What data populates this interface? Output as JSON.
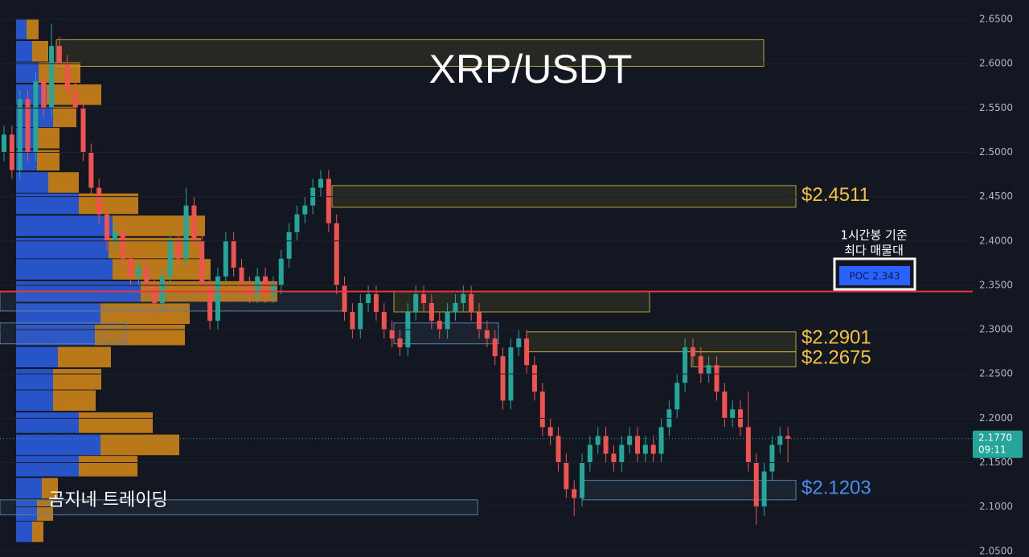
{
  "chart_data": {
    "type": "candlestick",
    "title": "XRP/USDT",
    "watermark": "곰지네 트레이딩",
    "ylim": [
      2.0435,
      2.6718
    ],
    "yticks": [
      {
        "value": 2.05,
        "label": "2.0500"
      },
      {
        "value": 2.1,
        "label": "2.1000"
      },
      {
        "value": 2.15,
        "label": "2.1500"
      },
      {
        "value": 2.2,
        "label": "2.2000"
      },
      {
        "value": 2.25,
        "label": "2.2500"
      },
      {
        "value": 2.3,
        "label": "2.3000"
      },
      {
        "value": 2.35,
        "label": "2.3500"
      },
      {
        "value": 2.4,
        "label": "2.4000"
      },
      {
        "value": 2.45,
        "label": "2.4500"
      },
      {
        "value": 2.5,
        "label": "2.5000"
      },
      {
        "value": 2.55,
        "label": "2.5500"
      },
      {
        "value": 2.6,
        "label": "2.6000"
      },
      {
        "value": 2.65,
        "label": "2.6500"
      }
    ],
    "up_color": "#26a69a",
    "down_color": "#ef5350",
    "open": [
      2.5,
      2.52,
      2.48,
      2.56,
      2.5,
      2.58,
      2.55,
      2.62,
      2.6,
      2.57,
      2.55,
      2.5,
      2.46,
      2.43,
      2.4,
      2.41,
      2.38,
      2.36,
      2.37,
      2.35,
      2.33,
      2.36,
      2.4,
      2.38,
      2.44,
      2.4,
      2.35,
      2.31,
      2.36,
      2.4,
      2.37,
      2.35,
      2.34,
      2.36,
      2.34,
      2.35,
      2.38,
      2.41,
      2.43,
      2.44,
      2.46,
      2.47,
      2.42,
      2.35,
      2.32,
      2.3,
      2.33,
      2.34,
      2.32,
      2.3,
      2.29,
      2.28,
      2.32,
      2.34,
      2.33,
      2.31,
      2.3,
      2.32,
      2.33,
      2.34,
      2.32,
      2.3,
      2.29,
      2.27,
      2.22,
      2.28,
      2.29,
      2.26,
      2.23,
      2.19,
      2.18,
      2.15,
      2.12,
      2.11,
      2.15,
      2.17,
      2.18,
      2.16,
      2.15,
      2.17,
      2.18,
      2.16,
      2.17,
      2.16,
      2.19,
      2.21,
      2.24,
      2.28,
      2.27,
      2.25,
      2.26,
      2.23,
      2.2,
      2.21,
      2.19,
      2.15,
      2.1,
      2.14,
      2.17,
      2.18
    ],
    "high": [
      2.53,
      2.53,
      2.57,
      2.57,
      2.59,
      2.59,
      2.645,
      2.63,
      2.61,
      2.58,
      2.56,
      2.51,
      2.47,
      2.44,
      2.42,
      2.42,
      2.39,
      2.38,
      2.38,
      2.36,
      2.37,
      2.41,
      2.41,
      2.46,
      2.45,
      2.41,
      2.36,
      2.37,
      2.41,
      2.41,
      2.38,
      2.36,
      2.37,
      2.37,
      2.36,
      2.39,
      2.42,
      2.44,
      2.45,
      2.47,
      2.48,
      2.48,
      2.43,
      2.36,
      2.33,
      2.34,
      2.35,
      2.35,
      2.33,
      2.31,
      2.3,
      2.33,
      2.35,
      2.35,
      2.34,
      2.32,
      2.33,
      2.34,
      2.35,
      2.35,
      2.33,
      2.31,
      2.3,
      2.28,
      2.29,
      2.3,
      2.3,
      2.27,
      2.24,
      2.2,
      2.19,
      2.16,
      2.13,
      2.16,
      2.18,
      2.19,
      2.19,
      2.17,
      2.18,
      2.19,
      2.19,
      2.18,
      2.18,
      2.2,
      2.22,
      2.25,
      2.29,
      2.29,
      2.28,
      2.27,
      2.27,
      2.24,
      2.22,
      2.22,
      2.23,
      2.16,
      2.15,
      2.18,
      2.19,
      2.19
    ],
    "low": [
      2.49,
      2.47,
      2.47,
      2.49,
      2.49,
      2.54,
      2.54,
      2.59,
      2.56,
      2.54,
      2.49,
      2.45,
      2.42,
      2.39,
      2.39,
      2.37,
      2.35,
      2.35,
      2.34,
      2.31,
      2.32,
      2.35,
      2.37,
      2.37,
      2.39,
      2.34,
      2.3,
      2.3,
      2.35,
      2.36,
      2.34,
      2.33,
      2.33,
      2.33,
      2.33,
      2.34,
      2.37,
      2.4,
      2.42,
      2.43,
      2.45,
      2.41,
      2.34,
      2.31,
      2.29,
      2.29,
      2.32,
      2.31,
      2.29,
      2.28,
      2.27,
      2.27,
      2.31,
      2.32,
      2.3,
      2.29,
      2.29,
      2.31,
      2.32,
      2.31,
      2.29,
      2.28,
      2.26,
      2.21,
      2.21,
      2.27,
      2.25,
      2.22,
      2.18,
      2.17,
      2.14,
      2.11,
      2.09,
      2.1,
      2.14,
      2.16,
      2.15,
      2.14,
      2.14,
      2.16,
      2.15,
      2.15,
      2.15,
      2.15,
      2.18,
      2.2,
      2.23,
      2.26,
      2.24,
      2.24,
      2.22,
      2.19,
      2.19,
      2.18,
      2.14,
      2.08,
      2.09,
      2.13,
      2.16,
      2.15
    ],
    "close": [
      2.52,
      2.48,
      2.56,
      2.5,
      2.58,
      2.55,
      2.62,
      2.6,
      2.57,
      2.55,
      2.5,
      2.46,
      2.43,
      2.4,
      2.41,
      2.38,
      2.36,
      2.37,
      2.35,
      2.33,
      2.36,
      2.4,
      2.38,
      2.44,
      2.4,
      2.35,
      2.31,
      2.36,
      2.4,
      2.37,
      2.35,
      2.34,
      2.36,
      2.34,
      2.35,
      2.38,
      2.41,
      2.43,
      2.44,
      2.46,
      2.47,
      2.42,
      2.35,
      2.32,
      2.3,
      2.33,
      2.34,
      2.32,
      2.3,
      2.29,
      2.28,
      2.32,
      2.34,
      2.33,
      2.31,
      2.3,
      2.32,
      2.33,
      2.34,
      2.32,
      2.3,
      2.29,
      2.27,
      2.22,
      2.28,
      2.29,
      2.26,
      2.23,
      2.19,
      2.18,
      2.15,
      2.12,
      2.11,
      2.15,
      2.17,
      2.18,
      2.16,
      2.15,
      2.17,
      2.18,
      2.16,
      2.17,
      2.16,
      2.19,
      2.21,
      2.24,
      2.28,
      2.27,
      2.25,
      2.26,
      2.23,
      2.2,
      2.21,
      2.19,
      2.15,
      2.1,
      2.14,
      2.17,
      2.18,
      2.177
    ],
    "current_price": {
      "value": 2.177,
      "label": "2.1770"
    },
    "countdown": "09:11",
    "poc": {
      "value": 2.343,
      "label": "POC  2.343",
      "color": "#e53935"
    },
    "poc_note": [
      "1시간봉 기준",
      "최다 매물대"
    ],
    "profile_colors": {
      "buy": "#2d5fe6",
      "sell": "#d98a16"
    },
    "profile": [
      {
        "price": 2.639,
        "buy": 13,
        "sell": 15
      },
      {
        "price": 2.614,
        "buy": 20,
        "sell": 20
      },
      {
        "price": 2.59,
        "buy": 28,
        "sell": 52
      },
      {
        "price": 2.565,
        "buy": 38,
        "sell": 68
      },
      {
        "price": 2.54,
        "buy": 46,
        "sell": 29
      },
      {
        "price": 2.516,
        "buy": 26,
        "sell": 28
      },
      {
        "price": 2.491,
        "buy": 26,
        "sell": 28
      },
      {
        "price": 2.466,
        "buy": 40,
        "sell": 38
      },
      {
        "price": 2.442,
        "buy": 78,
        "sell": 74
      },
      {
        "price": 2.417,
        "buy": 120,
        "sell": 115
      },
      {
        "price": 2.392,
        "buy": 115,
        "sell": 115
      },
      {
        "price": 2.368,
        "buy": 120,
        "sell": 122
      },
      {
        "price": 2.343,
        "buy": 155,
        "sell": 170
      },
      {
        "price": 2.318,
        "buy": 105,
        "sell": 111
      },
      {
        "price": 2.294,
        "buy": 98,
        "sell": 112
      },
      {
        "price": 2.269,
        "buy": 52,
        "sell": 66
      },
      {
        "price": 2.244,
        "buy": 46,
        "sell": 60
      },
      {
        "price": 2.22,
        "buy": 46,
        "sell": 53
      },
      {
        "price": 2.195,
        "buy": 78,
        "sell": 92
      },
      {
        "price": 2.17,
        "buy": 105,
        "sell": 98
      },
      {
        "price": 2.146,
        "buy": 78,
        "sell": 73
      },
      {
        "price": 2.121,
        "buy": 32,
        "sell": 20
      },
      {
        "price": 2.096,
        "buy": 26,
        "sell": 20
      },
      {
        "price": 2.072,
        "buy": 20,
        "sell": 14
      }
    ],
    "zones": [
      {
        "top": 2.627,
        "bottom": 2.597,
        "color": "#b8a53a"
      },
      {
        "top": 2.4625,
        "bottom": 2.438,
        "color": "#b8a53a",
        "price": 2.4511,
        "label": "$2.4511",
        "label_color": "#f5c33b"
      },
      {
        "top": 2.343,
        "bottom": 2.32,
        "color": "#b8a53a"
      },
      {
        "top": 2.343,
        "bottom": 2.321,
        "color": "#5a7fa8"
      },
      {
        "top": 2.3075,
        "bottom": 2.284,
        "color": "#5a7fa8"
      },
      {
        "top": 2.3075,
        "bottom": 2.284,
        "color": "#5a7fa8"
      },
      {
        "top": 2.2975,
        "bottom": 2.275,
        "color": "#b8a53a",
        "price": 2.2901,
        "label": "$2.2901",
        "label_color": "#f5c33b"
      },
      {
        "top": 2.275,
        "bottom": 2.258,
        "color": "#b8a53a",
        "price": 2.2675,
        "label": "$2.2675",
        "label_color": "#f5c33b"
      },
      {
        "top": 2.13,
        "bottom": 2.108,
        "color": "#5a7fa8",
        "price": 2.1203,
        "label": "$2.1203",
        "label_color": "#4a8ff0"
      },
      {
        "top": 2.108,
        "bottom": 2.091,
        "color": "#5a7fa8"
      }
    ]
  }
}
